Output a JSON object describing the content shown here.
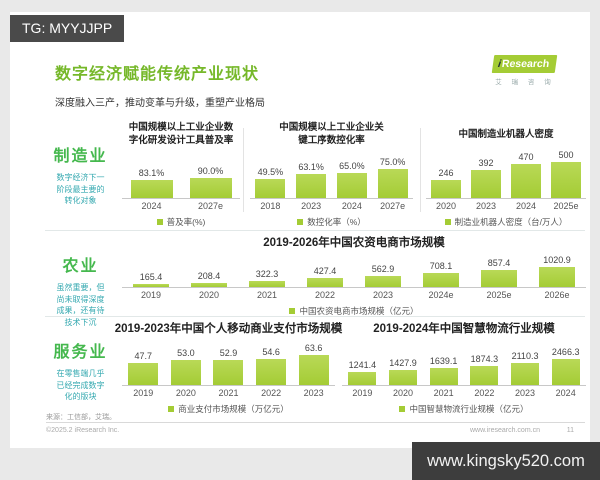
{
  "overlay": {
    "tg_badge": "TG: MYYJJPP",
    "watermark_site": "www.kingsky520.com"
  },
  "header": {
    "title": "数字经济赋能传统产业现状",
    "subtitle": "深度融入三产，推动变革与升级，重塑产业格局",
    "logo_brand_i": "i",
    "logo_brand": "Research",
    "logo_cn": "艾 瑞 咨 询"
  },
  "sections": {
    "manufacturing": {
      "label": "制造业",
      "note": [
        "数字经济下一",
        "阶段最主要的",
        "转化对象"
      ]
    },
    "agriculture": {
      "label": "农业",
      "note": [
        "虽然重要，但",
        "尚未取得深度",
        "成果，还有待",
        "技术下沉"
      ]
    },
    "services": {
      "label": "服务业",
      "note": [
        "在零售端几乎",
        "已经完成数字",
        "化的版块"
      ]
    }
  },
  "chart_data": [
    {
      "type": "bar",
      "title_lines": [
        "中国规模以上工业企业数",
        "字化研发设计工具普及率"
      ],
      "categories": [
        "2024",
        "2027e"
      ],
      "values": [
        83.1,
        90.0
      ],
      "value_labels": [
        "83.1%",
        "90.0%"
      ],
      "legend": "普及率(%)",
      "ylabel": "普及率(%)",
      "ylim": [
        0,
        100
      ]
    },
    {
      "type": "bar",
      "title_lines": [
        "中国规模以上工业企业关",
        "键工序数控化率"
      ],
      "categories": [
        "2018",
        "2023",
        "2024",
        "2027e"
      ],
      "values": [
        49.5,
        63.1,
        65.0,
        75.0
      ],
      "value_labels": [
        "49.5%",
        "63.1%",
        "65.0%",
        "75.0%"
      ],
      "legend": "数控化率（%）",
      "ylabel": "数控化率（%）",
      "ylim": [
        0,
        100
      ]
    },
    {
      "type": "bar",
      "title_lines": [
        "中国制造业机器人密度"
      ],
      "categories": [
        "2020",
        "2023",
        "2024",
        "2025e"
      ],
      "values": [
        246,
        392,
        470,
        500
      ],
      "value_labels": [
        "246",
        "392",
        "470",
        "500"
      ],
      "legend": "制造业机器人密度（台/万人）",
      "ylabel": "制造业机器人密度（台/万人）",
      "ylim": [
        0,
        560
      ]
    },
    {
      "type": "bar",
      "title_lines": [
        "2019-2026年中国农资电商市场规模"
      ],
      "categories": [
        "2019",
        "2020",
        "2021",
        "2022",
        "2023",
        "2024e",
        "2025e",
        "2026e"
      ],
      "values": [
        165.4,
        208.4,
        322.3,
        427.4,
        562.9,
        708.1,
        857.4,
        1020.9
      ],
      "value_labels": [
        "165.4",
        "208.4",
        "322.3",
        "427.4",
        "562.9",
        "708.1",
        "857.4",
        "1020.9"
      ],
      "legend": "中国农资电商市场规模（亿元）",
      "ylabel": "中国农资电商市场规模（亿元）",
      "ylim": [
        0,
        1100
      ]
    },
    {
      "type": "bar",
      "title_lines": [
        "2019-2023年中国个人移动商业支付市场规模"
      ],
      "categories": [
        "2019",
        "2020",
        "2021",
        "2022",
        "2023"
      ],
      "values": [
        47.7,
        53.0,
        52.9,
        54.6,
        63.6
      ],
      "value_labels": [
        "47.7",
        "53.0",
        "52.9",
        "54.6",
        "63.6"
      ],
      "legend": "商业支付市场规模（万亿元）",
      "ylabel": "商业支付市场规模（万亿元）",
      "ylim": [
        0,
        70
      ]
    },
    {
      "type": "bar",
      "title_lines": [
        "2019-2024年中国智慧物流行业规模"
      ],
      "categories": [
        "2019",
        "2020",
        "2021",
        "2022",
        "2023",
        "2024"
      ],
      "values": [
        1241.4,
        1427.9,
        1639.1,
        1874.3,
        2110.3,
        2466.3
      ],
      "value_labels": [
        "1241.4",
        "1427.9",
        "1639.1",
        "1874.3",
        "2110.3",
        "2466.3"
      ],
      "legend": "中国智慧物流行业规模（亿元）",
      "ylabel": "中国智慧物流行业规模（亿元）",
      "ylim": [
        0,
        2700
      ]
    }
  ],
  "footer": {
    "source": "来源：工信部，艾瑞。",
    "copyright": "©2025.2 iResearch Inc.",
    "site": "www.iresearch.com.cn",
    "page_number": "11"
  },
  "colors": {
    "bar_green": "#a4cc35",
    "bar_green_light": "#b9d957",
    "title_green": "#76b82a",
    "section_green": "#45b84e",
    "note_teal": "#35a9b0",
    "tg_box": "#4a4a4a",
    "watermark_box": "#3d3d3d"
  }
}
